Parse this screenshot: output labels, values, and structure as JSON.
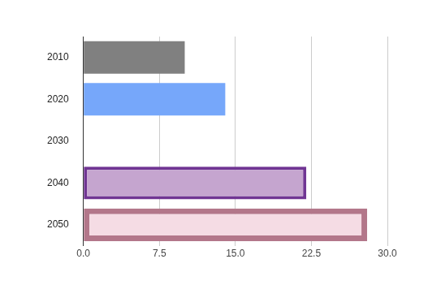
{
  "chart_data": {
    "type": "bar",
    "orientation": "horizontal",
    "categories": [
      "2010",
      "2020",
      "2030",
      "2040",
      "2050"
    ],
    "values": [
      10,
      14,
      null,
      22,
      28
    ],
    "colors": [
      "#808080",
      "#76a7fa",
      "#cccccc",
      "#c5a5cf",
      "#f5dce4"
    ],
    "xlim": [
      0,
      30
    ],
    "xticks": [
      {
        "value": 0,
        "label": "0.0"
      },
      7.5,
      {
        "value": 15,
        "label": "15.0"
      },
      22.5,
      {
        "value": 30,
        "label": "30.0"
      }
    ],
    "grid": true
  }
}
